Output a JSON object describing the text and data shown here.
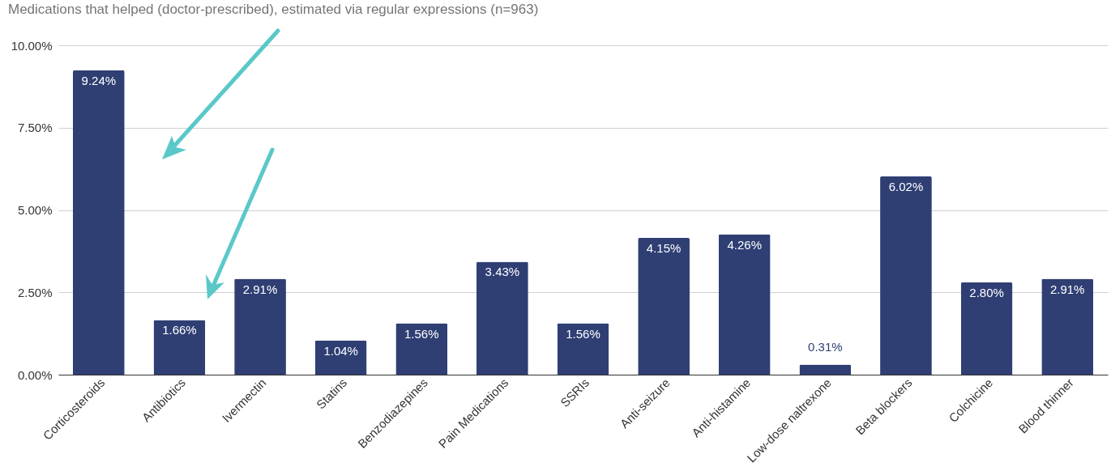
{
  "chart_data": {
    "type": "bar",
    "title": "Medications that helped (doctor-prescribed), estimated via regular expressions (n=963)",
    "categories": [
      "Corticosteroids",
      "Antibiotics",
      "Ivermectin",
      "Statins",
      "Benzodiazepines",
      "Pain Medications",
      "SSRIs",
      "Anti-seizure",
      "Anti-histamine",
      "Low-dose naltrexone",
      "Beta blockers",
      "Colchicine",
      "Blood thinner"
    ],
    "values": [
      9.24,
      1.66,
      2.91,
      1.04,
      1.56,
      3.43,
      1.56,
      4.15,
      4.26,
      0.31,
      6.02,
      2.8,
      2.91
    ],
    "value_labels": [
      "9.24%",
      "1.66%",
      "2.91%",
      "1.04%",
      "1.56%",
      "3.43%",
      "1.56%",
      "4.15%",
      "4.26%",
      "0.31%",
      "6.02%",
      "2.80%",
      "2.91%"
    ],
    "color": "#2f3f74",
    "ylim": [
      0,
      10
    ],
    "yticks": [
      {
        "value": 0,
        "label": "0.00%"
      },
      {
        "value": 2.5,
        "label": "2.50%"
      },
      {
        "value": 5,
        "label": "5.00%"
      },
      {
        "value": 7.5,
        "label": "7.50%"
      },
      {
        "value": 10,
        "label": "10.00%"
      }
    ],
    "grid": "y"
  }
}
